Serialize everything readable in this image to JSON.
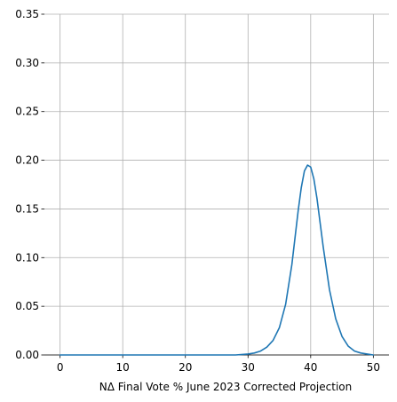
{
  "chart_data": {
    "type": "line",
    "title": "",
    "xlabel": "NΔ Final Vote % June 2023 Corrected Projection",
    "ylabel": "",
    "xlim": [
      -2.5,
      52.5
    ],
    "ylim": [
      0,
      0.35
    ],
    "x_ticks": [
      0,
      10,
      20,
      30,
      40,
      50
    ],
    "y_ticks": [
      0.0,
      0.05,
      0.1,
      0.15,
      0.2,
      0.25,
      0.3,
      0.35
    ],
    "x_tick_labels": [
      "0",
      "10",
      "20",
      "30",
      "40",
      "50"
    ],
    "y_tick_labels": [
      "0.00",
      "0.05",
      "0.10",
      "0.15",
      "0.20",
      "0.25",
      "0.30",
      "0.35"
    ],
    "grid": true,
    "legend": "none",
    "series": [
      {
        "color": "#1f77b4",
        "x": [
          0,
          5,
          10,
          15,
          20,
          25,
          28,
          30,
          31,
          32,
          33,
          34,
          35,
          36,
          37,
          38,
          38.5,
          39,
          39.5,
          40,
          40.5,
          41,
          41.5,
          42,
          43,
          44,
          45,
          46,
          47,
          48,
          49,
          50
        ],
        "y": [
          0.0,
          0.0,
          0.0,
          0.0,
          0.0,
          0.0,
          0.0,
          0.001,
          0.002,
          0.004,
          0.008,
          0.015,
          0.028,
          0.052,
          0.093,
          0.148,
          0.172,
          0.189,
          0.195,
          0.193,
          0.181,
          0.161,
          0.136,
          0.111,
          0.067,
          0.037,
          0.019,
          0.009,
          0.004,
          0.002,
          0.001,
          0.0
        ]
      }
    ]
  }
}
